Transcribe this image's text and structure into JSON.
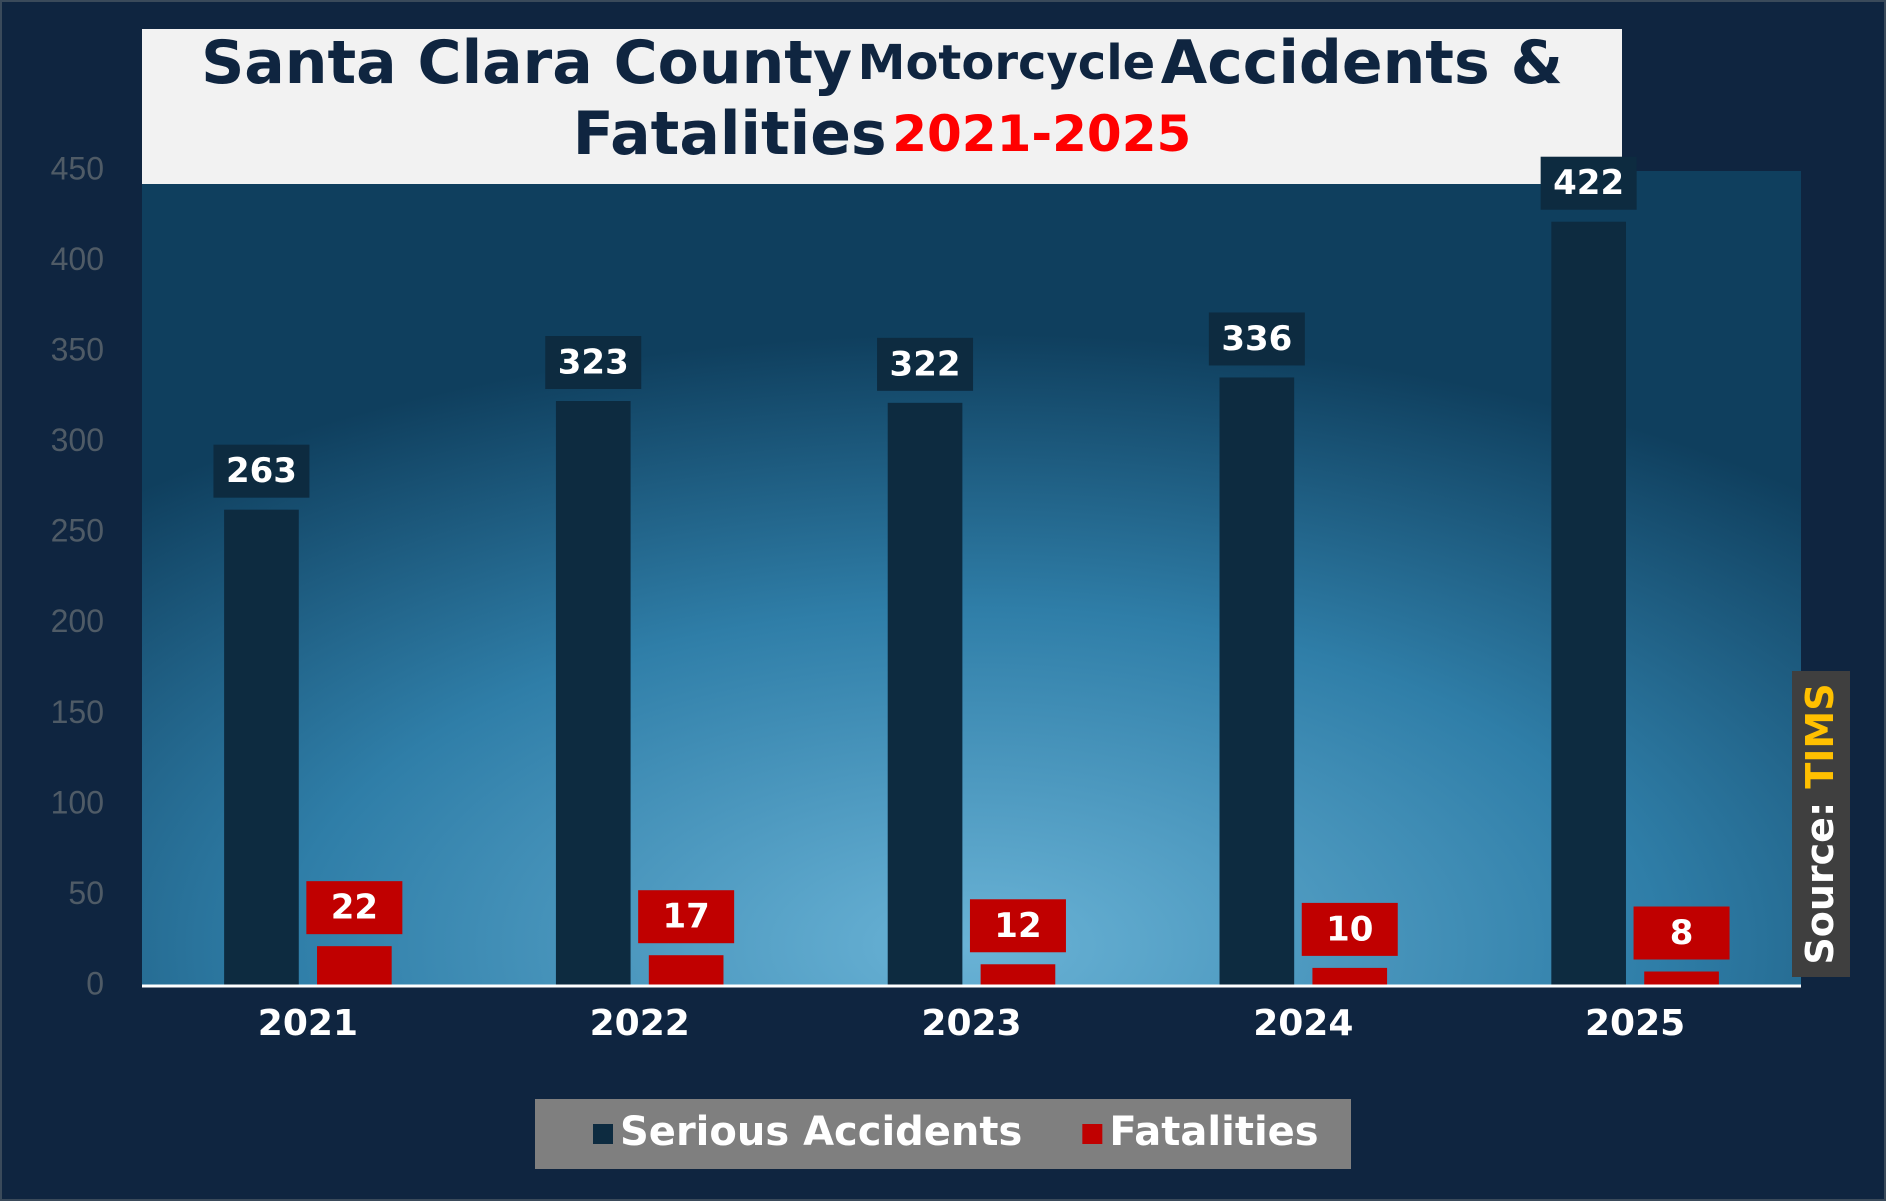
{
  "chart_data": {
    "type": "bar",
    "title_parts": [
      "Santa Clara County",
      "Motorcycle",
      "Accidents &",
      "Fatalities",
      "2021-2025"
    ],
    "source_label": "Source:",
    "source": "TIMS",
    "categories": [
      "2021",
      "2022",
      "2023",
      "2024",
      "2025"
    ],
    "series": [
      {
        "name": "Serious Accidents",
        "color": "#0d2b40",
        "values": [
          263,
          323,
          322,
          336,
          422
        ]
      },
      {
        "name": "Fatalities",
        "color": "#c00000",
        "values": [
          22,
          17,
          12,
          10,
          8
        ]
      }
    ],
    "ylim": [
      0,
      450
    ],
    "yticks": [
      0,
      50,
      100,
      150,
      200,
      250,
      300,
      350,
      400,
      450
    ],
    "grid": false,
    "legend": "bottom"
  }
}
